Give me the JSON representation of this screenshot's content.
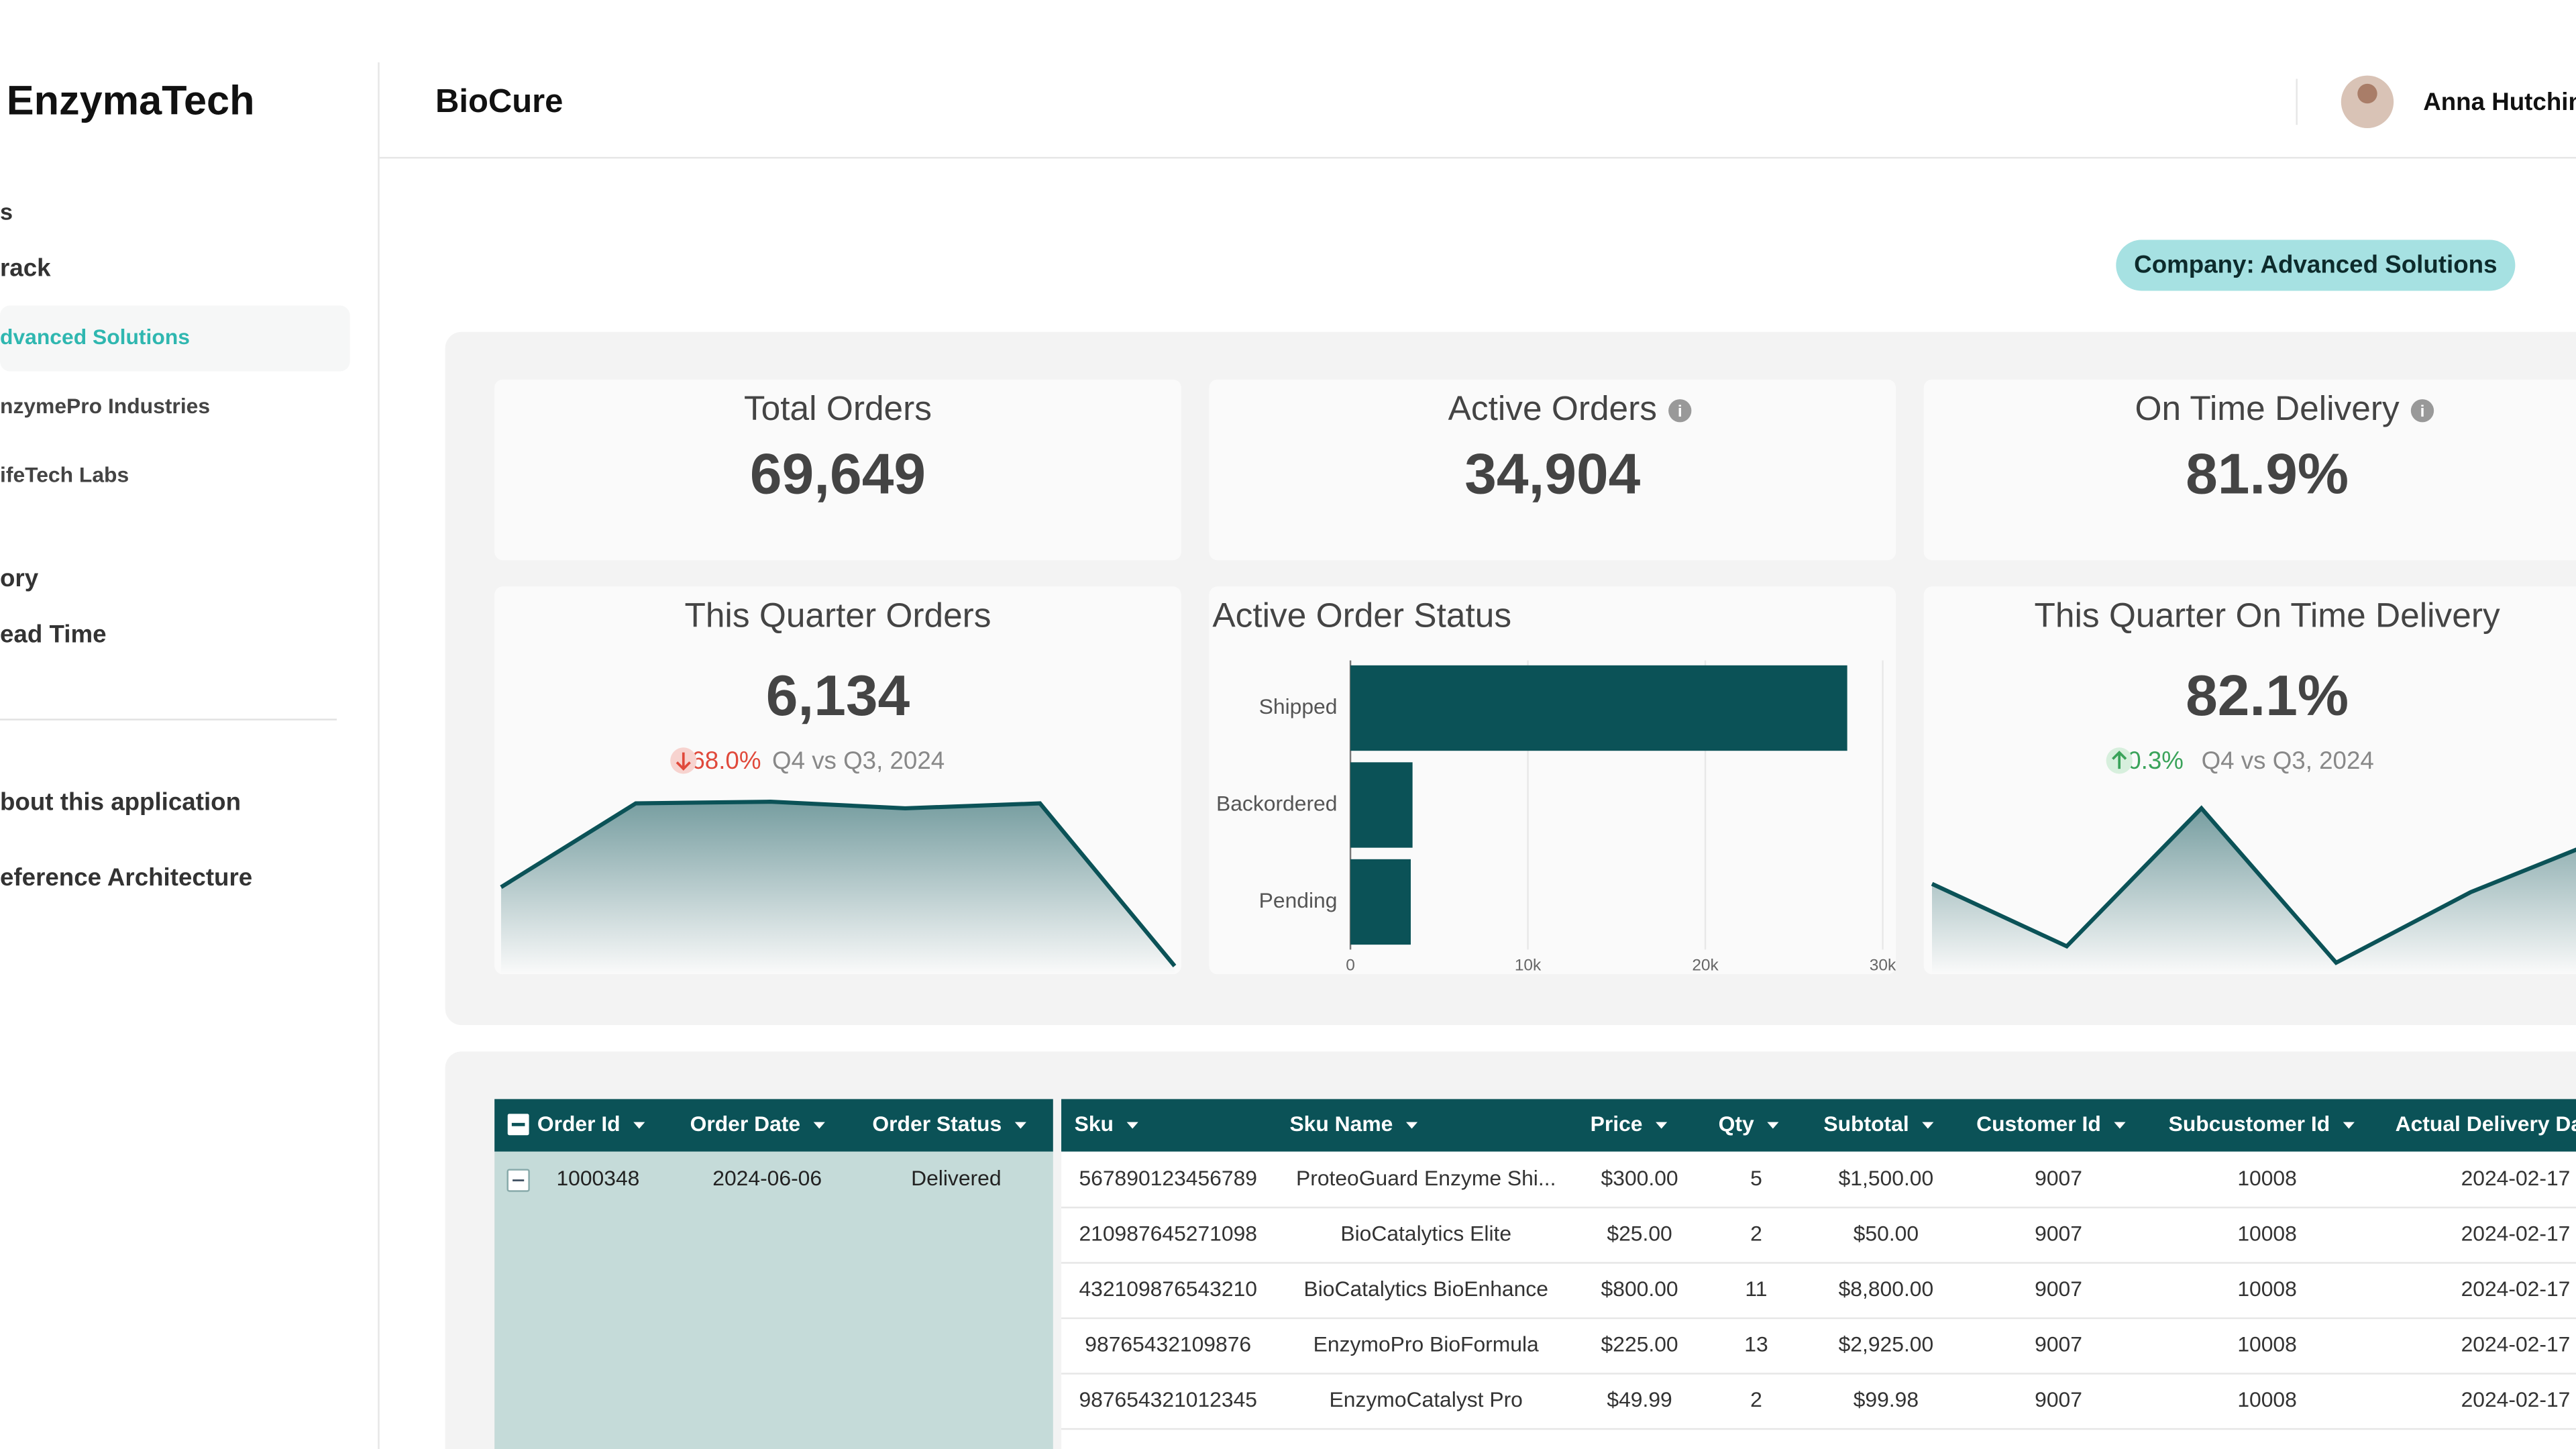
{
  "sidebar": {
    "brand": "EnzymaTech",
    "items": [
      "s",
      "rack",
      "dvanced Solutions",
      "nzymePro Industries",
      "ifeTech Labs",
      "ory",
      "ead Time",
      "bout this application",
      "eference Architecture"
    ]
  },
  "header": {
    "title": "BioCure",
    "user": "Anna Hutchin",
    "badge": "Company: Advanced Solutions"
  },
  "kpis": [
    {
      "label": "Total Orders",
      "value": "69,649"
    },
    {
      "label": "Active Orders",
      "value": "34,904"
    },
    {
      "label": "On Time Delivery",
      "value": "81.9%"
    }
  ],
  "quarter_orders": {
    "label": "This Quarter Orders",
    "value": "6,134",
    "change": "68.0%",
    "period": "Q4 vs Q3, 2024",
    "trend": [
      50,
      101,
      102,
      98,
      101,
      2
    ]
  },
  "quarter_delivery": {
    "label": "This Quarter On Time Delivery",
    "value": "82.1%",
    "change": "0.3%",
    "period": "Q4 vs Q3, 2024",
    "trend": [
      52,
      14,
      98,
      4,
      47,
      80
    ]
  },
  "status_chart": {
    "type": "bar",
    "title": "Active Order Status",
    "categories": [
      "Shipped",
      "Backordered",
      "Pending"
    ],
    "values": [
      28000,
      3500,
      3400
    ],
    "color": "#0b5257",
    "xlim": [
      0,
      30000
    ],
    "xticks": [
      0,
      {
        "value": 10000,
        "label": "10k"
      },
      {
        "value": 20000,
        "label": "20k"
      },
      {
        "value": 30000,
        "label": "30k"
      }
    ],
    "grid": true
  },
  "table": {
    "columns": [
      "Order Id",
      "Order Date",
      "Order Status",
      "Sku",
      "Sku Name",
      "Price",
      "Qty",
      "Subtotal",
      "Customer Id",
      "Subcustomer Id",
      "Actual Delivery Date"
    ],
    "order": [
      "1000348",
      "2024-06-06",
      "Delivered"
    ],
    "rows": [
      [
        "567890123456789",
        "ProteoGuard Enzyme Shi...",
        "$300.00",
        "5",
        "$1,500.00",
        "9007",
        "10008",
        "2024-02-17"
      ],
      [
        "210987645271098",
        "BioCatalytics Elite",
        "$25.00",
        "2",
        "$50.00",
        "9007",
        "10008",
        "2024-02-17"
      ],
      [
        "432109876543210",
        "BioCatalytics BioEnhance",
        "$800.00",
        "11",
        "$8,800.00",
        "9007",
        "10008",
        "2024-02-17"
      ],
      [
        "98765432109876",
        "EnzymoPro BioFormula",
        "$225.00",
        "13",
        "$2,925.00",
        "9007",
        "10008",
        "2024-02-17"
      ],
      [
        "987654321012345",
        "EnzymoCatalyst Pro",
        "$49.99",
        "2",
        "$99.98",
        "9007",
        "10008",
        "2024-02-17"
      ]
    ]
  }
}
